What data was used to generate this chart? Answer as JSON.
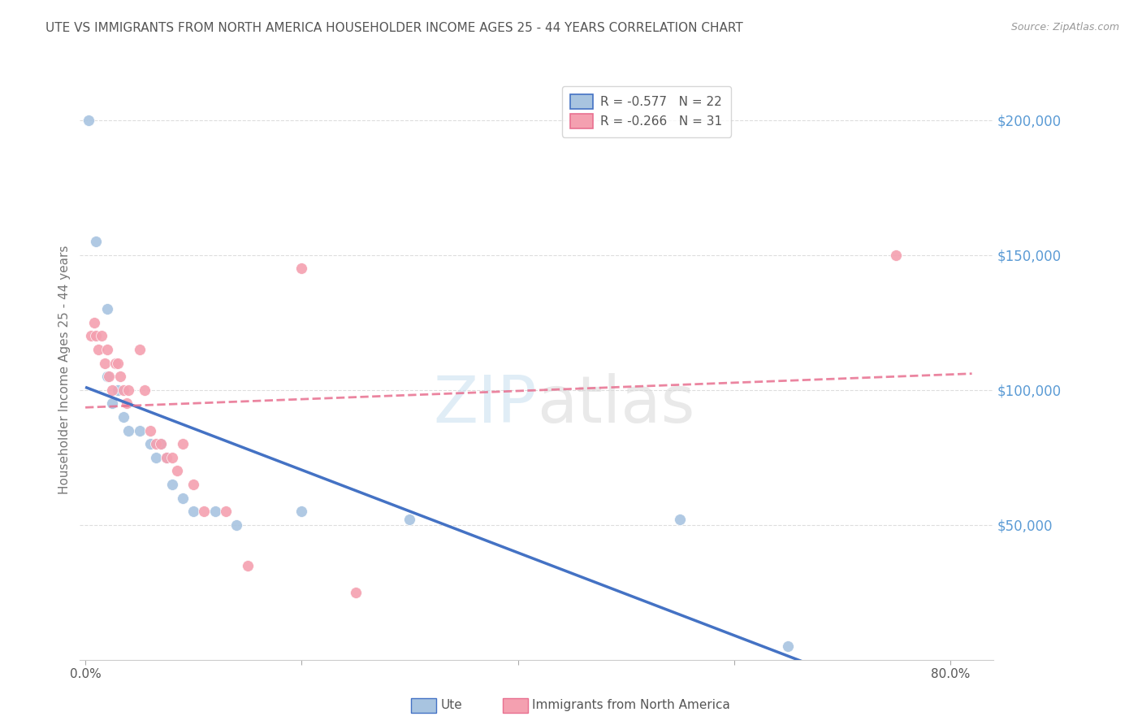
{
  "title": "UTE VS IMMIGRANTS FROM NORTH AMERICA HOUSEHOLDER INCOME AGES 25 - 44 YEARS CORRELATION CHART",
  "source": "Source: ZipAtlas.com",
  "ylabel": "Householder Income Ages 25 - 44 years",
  "ytick_labels": [
    "$200,000",
    "$150,000",
    "$100,000",
    "$50,000"
  ],
  "ytick_values": [
    200000,
    150000,
    100000,
    50000
  ],
  "ylim": [
    0,
    215000
  ],
  "xlim": [
    -0.005,
    0.84
  ],
  "legend_ute_R": "-0.577",
  "legend_ute_N": "22",
  "legend_imm_R": "-0.266",
  "legend_imm_N": "31",
  "ute_color": "#a8c4e0",
  "imm_color": "#f4a0b0",
  "ute_line_color": "#4472c4",
  "imm_line_color": "#e87090",
  "ute_x": [
    0.003,
    0.01,
    0.02,
    0.02,
    0.025,
    0.03,
    0.035,
    0.04,
    0.05,
    0.06,
    0.065,
    0.07,
    0.075,
    0.08,
    0.09,
    0.1,
    0.12,
    0.14,
    0.2,
    0.3,
    0.55,
    0.65
  ],
  "ute_y": [
    200000,
    155000,
    130000,
    105000,
    95000,
    100000,
    90000,
    85000,
    85000,
    80000,
    75000,
    80000,
    75000,
    65000,
    60000,
    55000,
    55000,
    50000,
    55000,
    52000,
    52000,
    5000
  ],
  "imm_x": [
    0.005,
    0.008,
    0.01,
    0.012,
    0.015,
    0.018,
    0.02,
    0.022,
    0.025,
    0.028,
    0.03,
    0.032,
    0.035,
    0.038,
    0.04,
    0.05,
    0.055,
    0.06,
    0.065,
    0.07,
    0.075,
    0.08,
    0.085,
    0.09,
    0.1,
    0.11,
    0.13,
    0.15,
    0.2,
    0.25,
    0.75
  ],
  "imm_y": [
    120000,
    125000,
    120000,
    115000,
    120000,
    110000,
    115000,
    105000,
    100000,
    110000,
    110000,
    105000,
    100000,
    95000,
    100000,
    115000,
    100000,
    85000,
    80000,
    80000,
    75000,
    75000,
    70000,
    80000,
    65000,
    55000,
    55000,
    35000,
    145000,
    25000,
    150000
  ],
  "title_color": "#555555",
  "source_color": "#999999",
  "grid_color": "#dddddd",
  "yaxis_label_color": "#5b9bd5",
  "marker_size": 100,
  "ute_line_start_x": 0.0,
  "ute_line_end_x": 0.82,
  "imm_line_start_x": 0.0,
  "imm_line_end_x": 0.82
}
